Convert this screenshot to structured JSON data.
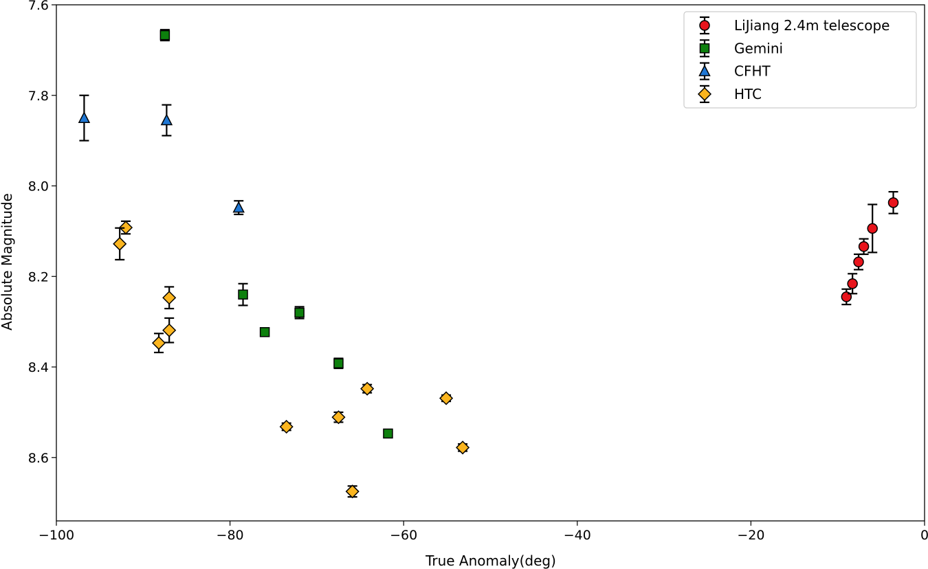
{
  "chart_data": {
    "type": "scatter",
    "title": "",
    "xlabel": "True Anomaly(deg)",
    "ylabel": "Absolute Magnitude",
    "xlim": [
      -100,
      0
    ],
    "ylim": [
      8.74,
      7.6
    ],
    "y_inverted": true,
    "x_ticks": [
      -100,
      -80,
      -60,
      -40,
      -20,
      0
    ],
    "x_tick_labels": [
      "−100",
      "−80",
      "−60",
      "−40",
      "−20",
      "0"
    ],
    "y_ticks": [
      7.6,
      7.8,
      8.0,
      8.2,
      8.4,
      8.6
    ],
    "y_tick_labels": [
      "7.6",
      "7.8",
      "8.0",
      "8.2",
      "8.4",
      "8.6"
    ],
    "grid": false,
    "legend_position": "top-right",
    "series": [
      {
        "name": "LiJiang 2.4m telescope",
        "marker": "circle",
        "color": "#e8141c",
        "points": [
          {
            "x": -9.0,
            "y": 8.245,
            "err": 0.017
          },
          {
            "x": -8.3,
            "y": 8.216,
            "err": 0.022
          },
          {
            "x": -7.6,
            "y": 8.168,
            "err": 0.017
          },
          {
            "x": -7.0,
            "y": 8.134,
            "err": 0.017
          },
          {
            "x": -6.0,
            "y": 8.094,
            "err": 0.053
          },
          {
            "x": -3.6,
            "y": 8.037,
            "err": 0.024
          }
        ]
      },
      {
        "name": "Gemini",
        "marker": "square",
        "color": "#0d800d",
        "points": [
          {
            "x": -87.5,
            "y": 7.667,
            "err": 0.012
          },
          {
            "x": -78.5,
            "y": 8.24,
            "err": 0.024
          },
          {
            "x": -76.0,
            "y": 8.323,
            "err": 0.009
          },
          {
            "x": -72.0,
            "y": 8.28,
            "err": 0.013
          },
          {
            "x": -67.5,
            "y": 8.392,
            "err": 0.011
          },
          {
            "x": -61.8,
            "y": 8.547,
            "err": 0.006
          }
        ]
      },
      {
        "name": "CFHT",
        "marker": "triangle",
        "color": "#1f77d4",
        "points": [
          {
            "x": -96.8,
            "y": 7.85,
            "err": 0.05
          },
          {
            "x": -87.3,
            "y": 7.855,
            "err": 0.034
          },
          {
            "x": -79.0,
            "y": 8.048,
            "err": 0.015
          }
        ]
      },
      {
        "name": "HTC",
        "marker": "diamond",
        "color": "#fbb51f",
        "points": [
          {
            "x": -92.0,
            "y": 8.092,
            "err": 0.014
          },
          {
            "x": -92.7,
            "y": 8.128,
            "err": 0.035
          },
          {
            "x": -87.0,
            "y": 8.247,
            "err": 0.024
          },
          {
            "x": -87.0,
            "y": 8.319,
            "err": 0.027
          },
          {
            "x": -88.2,
            "y": 8.347,
            "err": 0.021
          },
          {
            "x": -73.5,
            "y": 8.532,
            "err": 0.008
          },
          {
            "x": -67.5,
            "y": 8.511,
            "err": 0.011
          },
          {
            "x": -64.2,
            "y": 8.448,
            "err": 0.009
          },
          {
            "x": -65.9,
            "y": 8.675,
            "err": 0.012
          },
          {
            "x": -55.1,
            "y": 8.469,
            "err": 0.007
          },
          {
            "x": -53.2,
            "y": 8.578,
            "err": 0.008
          }
        ]
      }
    ]
  }
}
